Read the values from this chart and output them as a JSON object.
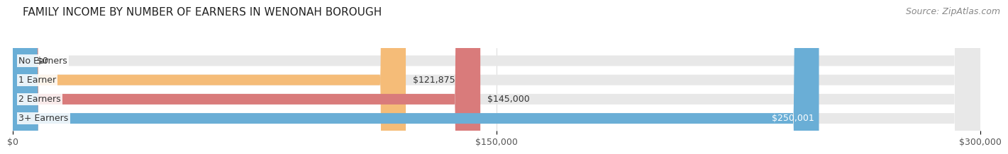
{
  "title": "FAMILY INCOME BY NUMBER OF EARNERS IN WENONAH BOROUGH",
  "source": "Source: ZipAtlas.com",
  "categories": [
    "No Earners",
    "1 Earner",
    "2 Earners",
    "3+ Earners"
  ],
  "values": [
    0,
    121875,
    145000,
    250001
  ],
  "bar_colors": [
    "#f48caa",
    "#f5bc78",
    "#d97b7b",
    "#6aaed6"
  ],
  "label_colors": [
    "#444444",
    "#444444",
    "#444444",
    "#ffffff"
  ],
  "xlim": [
    0,
    300000
  ],
  "xticks": [
    0,
    150000,
    300000
  ],
  "xtick_labels": [
    "$0",
    "$150,000",
    "$300,000"
  ],
  "background_color": "#ffffff",
  "title_fontsize": 11,
  "source_fontsize": 9,
  "bar_label_fontsize": 9,
  "category_fontsize": 9,
  "value_labels": [
    "$0",
    "$121,875",
    "$145,000",
    "$250,001"
  ]
}
